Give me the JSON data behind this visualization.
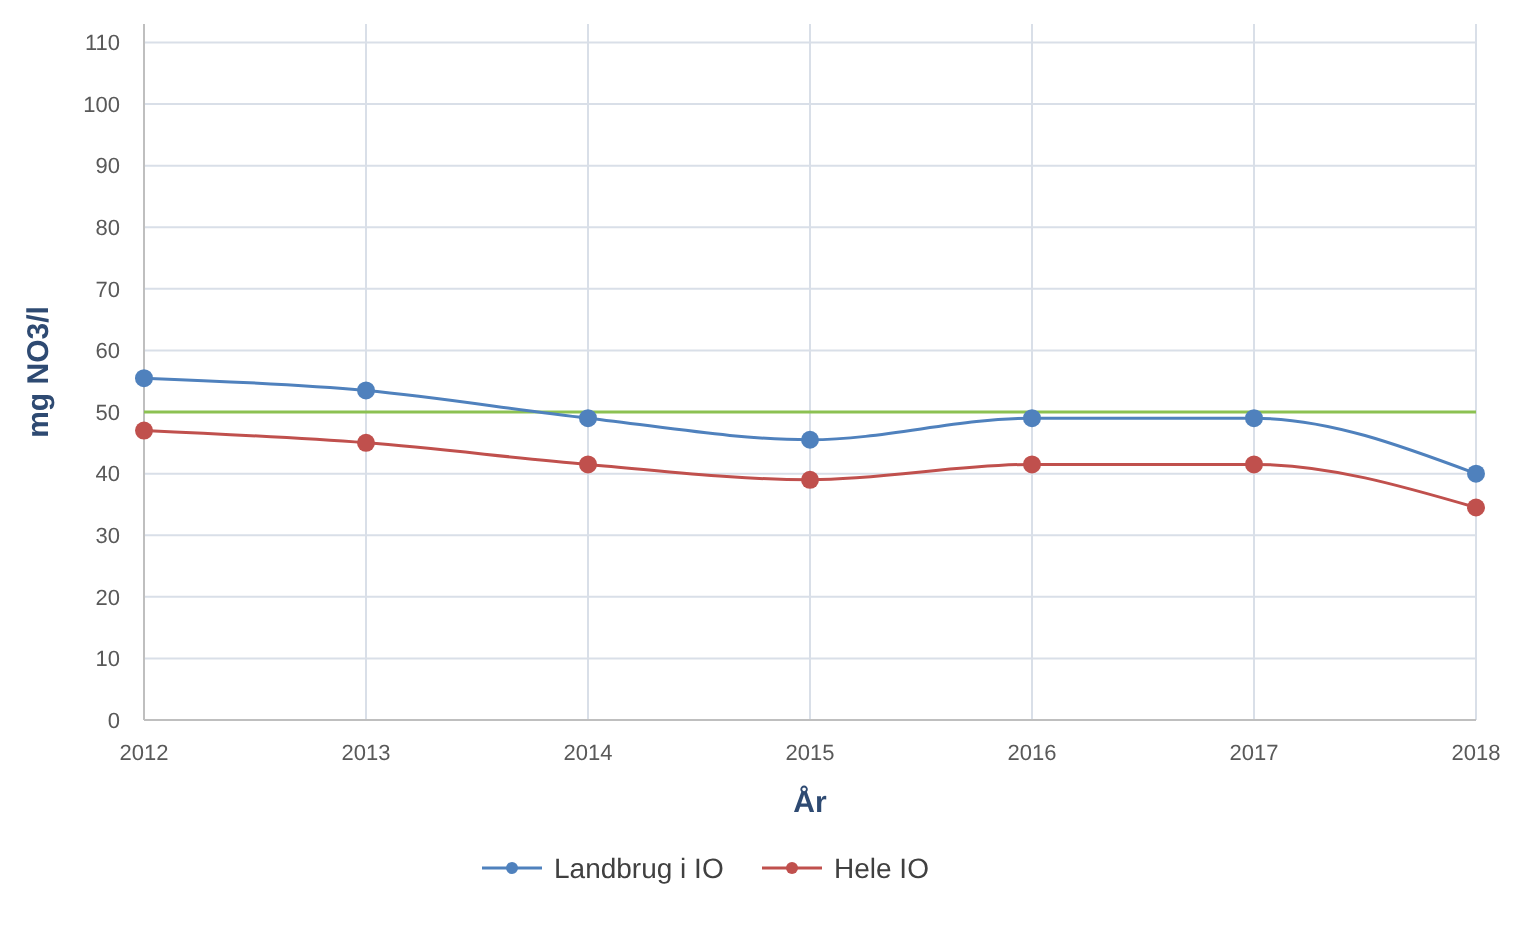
{
  "chart_data": {
    "type": "line",
    "xlabel": "År",
    "ylabel": "mg NO3/l",
    "categories": [
      "2012",
      "2013",
      "2014",
      "2015",
      "2016",
      "2017",
      "2018"
    ],
    "series": [
      {
        "name": "Landbrug i IO",
        "color": "#4f81bd",
        "values": [
          55.5,
          53.5,
          49,
          45.5,
          49,
          49,
          40
        ]
      },
      {
        "name": "Hele IO",
        "color": "#c0504d",
        "values": [
          47,
          45,
          41.5,
          39,
          41.5,
          41.5,
          34.5
        ]
      }
    ],
    "ref_lines": [
      {
        "axis": "y",
        "value": 50,
        "color": "#8cc152"
      }
    ],
    "ylim": [
      0,
      113
    ],
    "yticks": [
      0,
      10,
      20,
      30,
      40,
      50,
      60,
      70,
      80,
      90,
      100,
      110
    ],
    "grid": true,
    "legend": "bottom",
    "marker": "circle",
    "line_style": "solid"
  }
}
